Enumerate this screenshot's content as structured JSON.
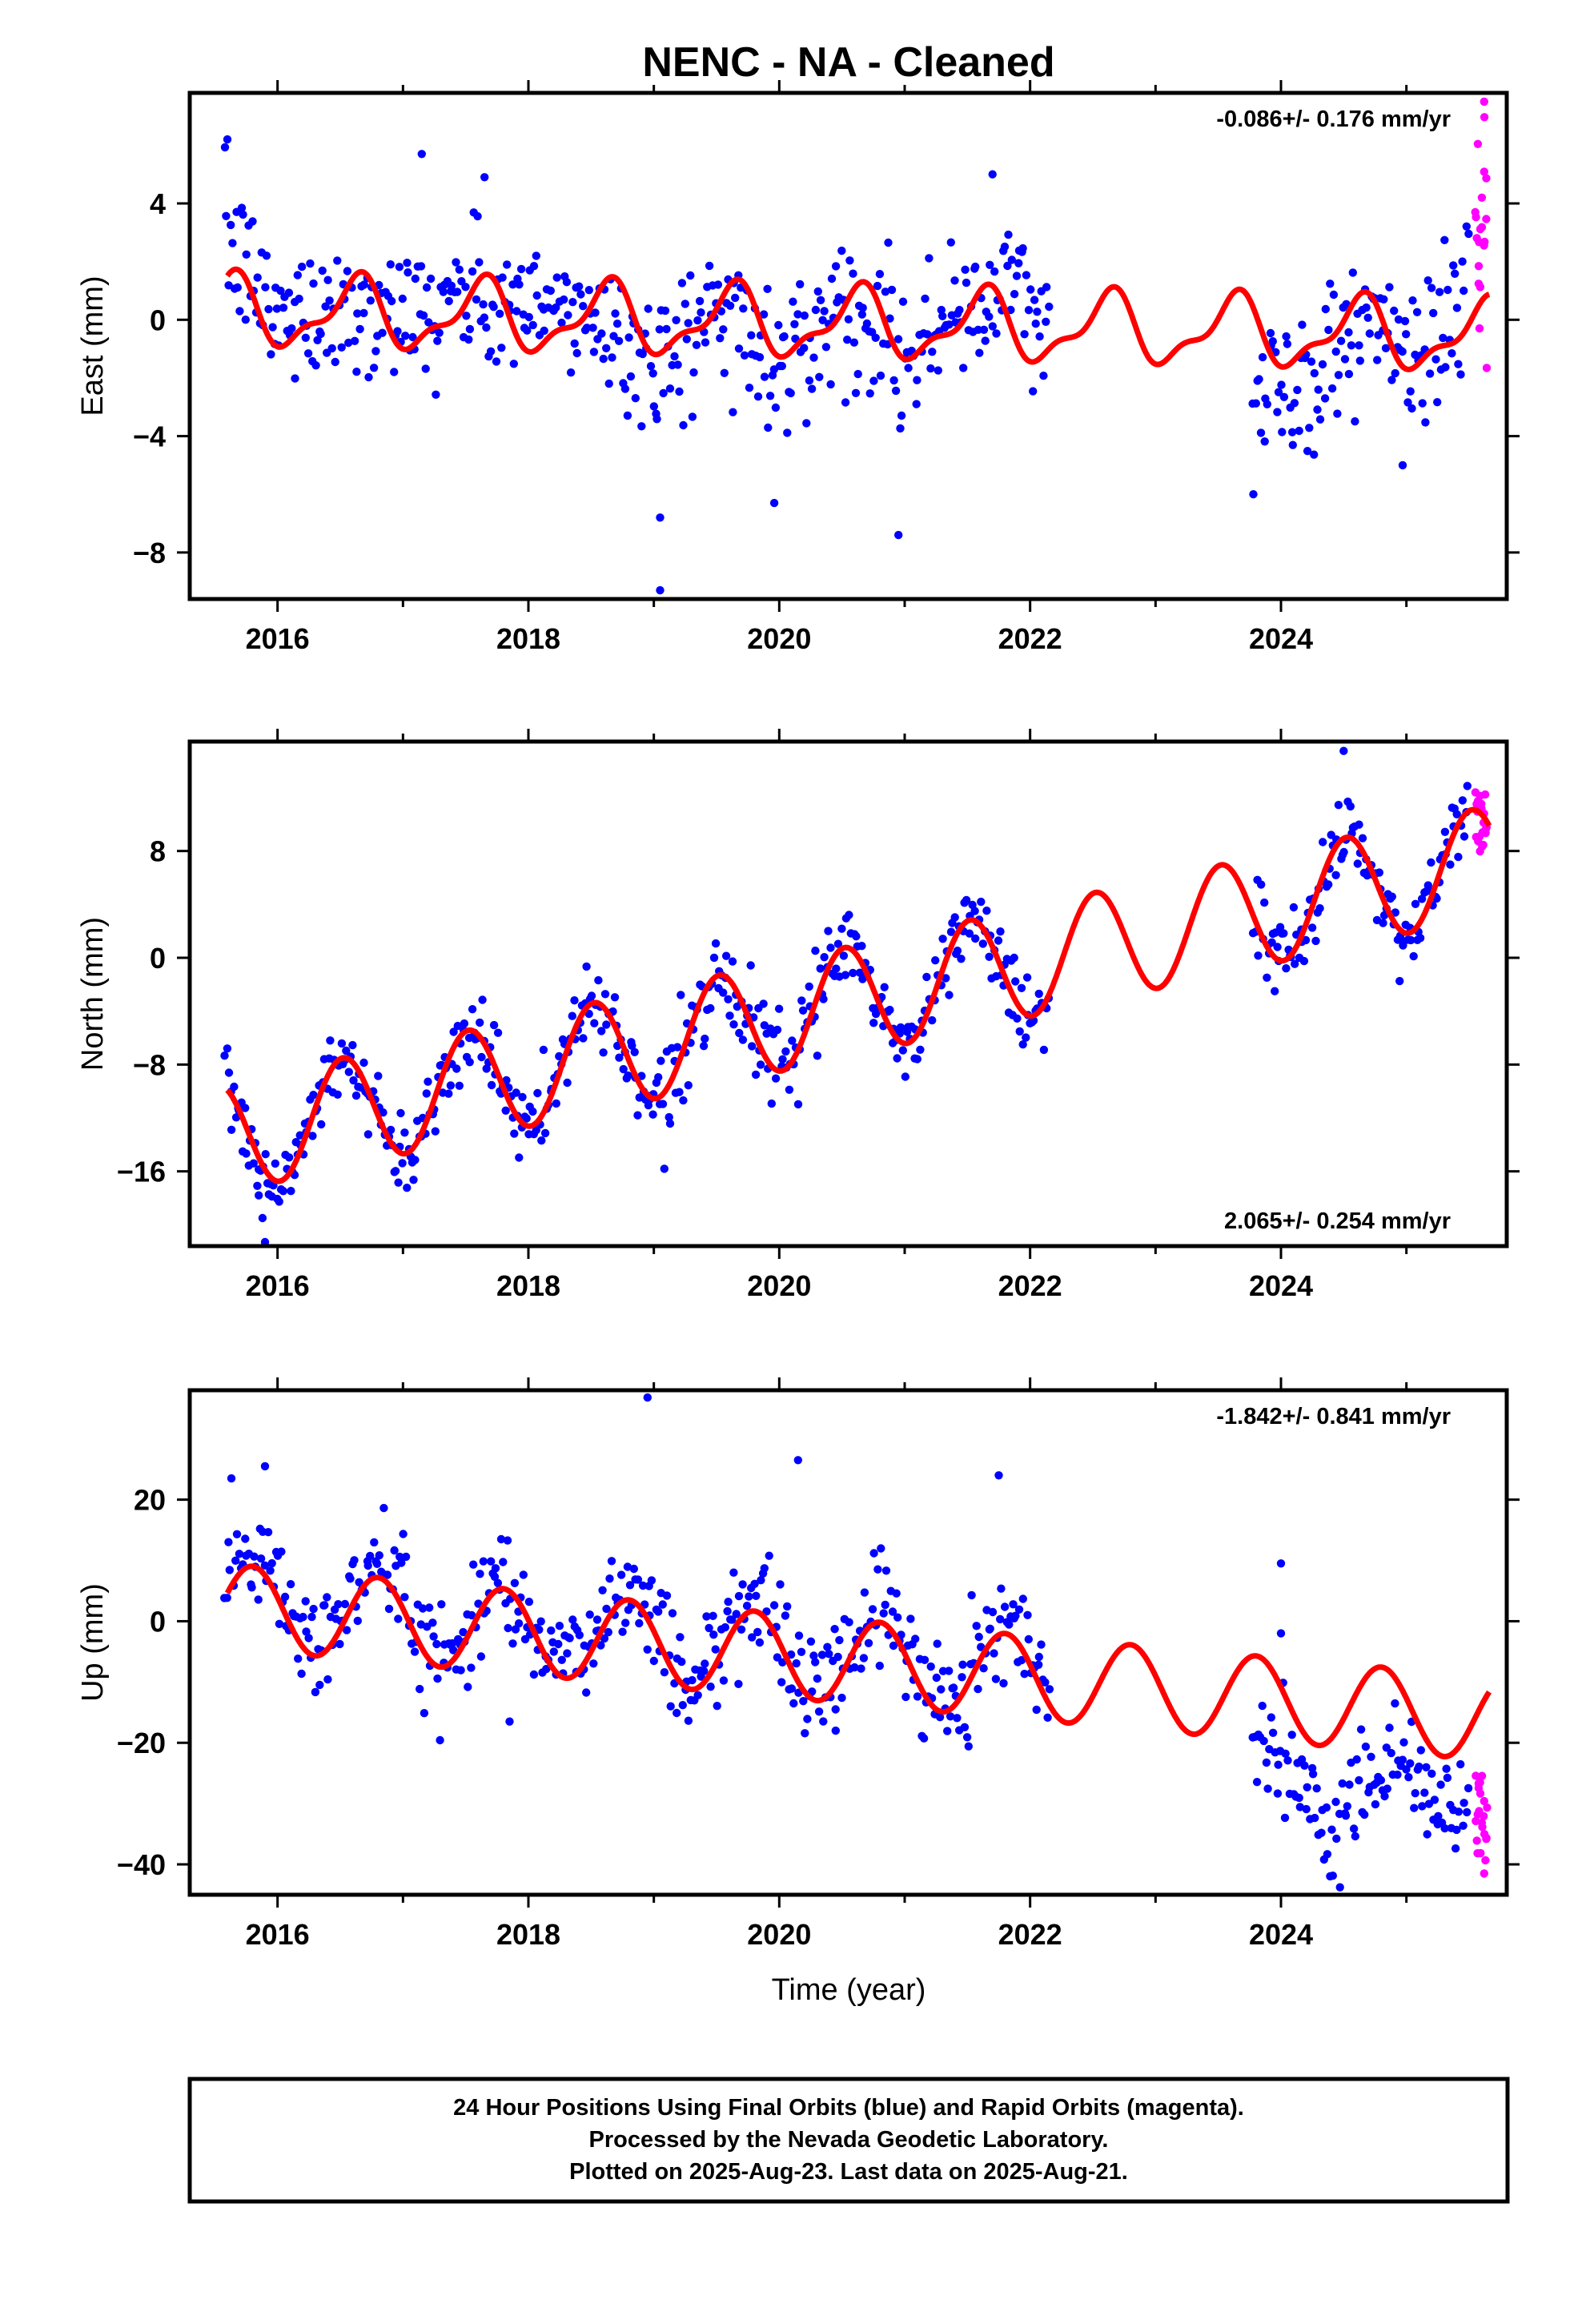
{
  "title": "NENC  - NA - Cleaned",
  "x_axis_label": "Time (year)",
  "footer": [
    "24 Hour Positions Using Final Orbits (blue) and Rapid Orbits (magenta).",
    "Processed by the Nevada Geodetic Laboratory.",
    "Plotted on 2025-Aug-23. Last data on 2025-Aug-21."
  ],
  "colors": {
    "final_orbits": "#0000ff",
    "rapid_orbits": "#ff00ff",
    "model": "#ff0000",
    "frame": "#000000"
  },
  "chart_data": [
    {
      "type": "scatter",
      "ylabel": "East (mm)",
      "rate_text": "-0.086+/- 0.176 mm/yr",
      "rate_position": "top-right",
      "xlim": [
        2015.3,
        2025.8
      ],
      "ylim": [
        -9.6,
        7.8
      ],
      "x_ticks": [
        2016,
        2018,
        2020,
        2022,
        2024
      ],
      "y_ticks": [
        4,
        0,
        -4,
        -8
      ],
      "series": [
        {
          "name": "Final Orbits",
          "color": "#0000ff",
          "segments": [
            {
              "x_start": 2015.58,
              "x_end": 2022.15,
              "center_by_year": [
                [
                  2015.6,
                  2.6
                ],
                [
                  2016.0,
                  0.0
                ],
                [
                  2016.5,
                  0.6
                ],
                [
                  2017.0,
                  0.2
                ],
                [
                  2017.5,
                  0.8
                ],
                [
                  2018.0,
                  0.2
                ],
                [
                  2018.5,
                  0.3
                ],
                [
                  2019.0,
                  -1.6
                ],
                [
                  2019.5,
                  0.4
                ],
                [
                  2020.0,
                  -1.5
                ],
                [
                  2020.5,
                  0.6
                ],
                [
                  2021.0,
                  -0.9
                ],
                [
                  2021.5,
                  0.1
                ],
                [
                  2021.8,
                  1.5
                ],
                [
                  2022.15,
                  -0.8
                ]
              ],
              "spread": 1.2
            },
            {
              "x_start": 2023.78,
              "x_end": 2025.5,
              "center_by_year": [
                [
                  2023.8,
                  -2.0
                ],
                [
                  2024.2,
                  -2.5
                ],
                [
                  2024.6,
                  0.3
                ],
                [
                  2025.0,
                  -1.2
                ],
                [
                  2025.3,
                  -0.8
                ],
                [
                  2025.5,
                  2.0
                ]
              ],
              "spread": 1.3
            }
          ]
        },
        {
          "name": "Rapid Orbits",
          "color": "#ff00ff",
          "segments": [
            {
              "x_start": 2025.55,
              "x_end": 2025.64,
              "center_by_year": [
                [
                  2025.55,
                  3.5
                ],
                [
                  2025.64,
                  2.5
                ]
              ],
              "spread": 2.0
            }
          ]
        }
      ],
      "model": {
        "color": "#ff0000",
        "offset": -0.1,
        "trend_mm_per_yr": -0.086,
        "annual_amplitude": 1.1,
        "annual_phase_year": 2016.62,
        "semiannual_amplitude": 0.45,
        "semiannual_phase_year": 2016.7
      },
      "outliers": [
        [
          2015.6,
          6.2
        ],
        [
          2017.15,
          5.7
        ],
        [
          2017.65,
          4.9
        ],
        [
          2019.05,
          -6.8
        ],
        [
          2019.05,
          -9.3
        ],
        [
          2019.96,
          -6.3
        ],
        [
          2020.95,
          -7.4
        ],
        [
          2021.7,
          5.0
        ],
        [
          2023.78,
          -6.0
        ],
        [
          2024.97,
          -5.0
        ],
        [
          2025.62,
          7.5
        ]
      ]
    },
    {
      "type": "scatter",
      "ylabel": "North (mm)",
      "rate_text": "2.065+/- 0.254 mm/yr",
      "rate_position": "bottom-right",
      "xlim": [
        2015.3,
        2025.8
      ],
      "ylim": [
        -21.6,
        16.2
      ],
      "x_ticks": [
        2016,
        2018,
        2020,
        2022,
        2024
      ],
      "y_ticks": [
        8,
        0,
        -8,
        -16
      ],
      "series": [
        {
          "name": "Final Orbits",
          "color": "#0000ff",
          "segments": [
            {
              "x_start": 2015.58,
              "x_end": 2022.15,
              "follow_model": true,
              "spread": 1.5
            },
            {
              "x_start": 2023.78,
              "x_end": 2025.5,
              "follow_model": true,
              "spread": 1.5
            }
          ]
        },
        {
          "name": "Rapid Orbits",
          "color": "#ff00ff",
          "segments": [
            {
              "x_start": 2025.55,
              "x_end": 2025.64,
              "center_by_year": [
                [
                  2025.55,
                  11.0
                ],
                [
                  2025.64,
                  9.5
                ]
              ],
              "spread": 1.6
            }
          ]
        }
      ],
      "model": {
        "color": "#ff0000",
        "offset": -13.5,
        "trend_mm_per_yr": 2.065,
        "trend_origin": 2015.6,
        "annual_amplitude": 4.1,
        "annual_phase_year": 2016.52
      },
      "outliers": [
        [
          2015.85,
          -17.8
        ],
        [
          2015.88,
          -19.5
        ],
        [
          2015.9,
          -21.3
        ],
        [
          2023.95,
          -2.5
        ],
        [
          2024.5,
          15.5
        ]
      ]
    },
    {
      "type": "scatter",
      "ylabel": "Up (mm)",
      "rate_text": "-1.842+/- 0.841 mm/yr",
      "rate_position": "top-right",
      "xlim": [
        2015.3,
        2025.8
      ],
      "ylim": [
        -45,
        38
      ],
      "x_ticks": [
        2016,
        2018,
        2020,
        2022,
        2024
      ],
      "y_ticks": [
        20,
        0,
        -20,
        -40
      ],
      "series": [
        {
          "name": "Final Orbits",
          "color": "#0000ff",
          "segments": [
            {
              "x_start": 2015.58,
              "x_end": 2022.15,
              "follow_model": true,
              "model_shift": 2.0,
              "spread": 4.5
            },
            {
              "x_start": 2023.78,
              "x_end": 2025.5,
              "center_by_year": [
                [
                  2023.8,
                  -18.0
                ],
                [
                  2024.1,
                  -25.0
                ],
                [
                  2024.4,
                  -33.0
                ],
                [
                  2024.8,
                  -22.0
                ],
                [
                  2025.1,
                  -27.0
                ],
                [
                  2025.5,
                  -33.0
                ]
              ],
              "spread": 4.0
            }
          ]
        },
        {
          "name": "Rapid Orbits",
          "color": "#ff00ff",
          "segments": [
            {
              "x_start": 2025.55,
              "x_end": 2025.64,
              "center_by_year": [
                [
                  2025.55,
                  -31.0
                ],
                [
                  2025.64,
                  -35.0
                ]
              ],
              "spread": 4.5
            }
          ]
        }
      ],
      "model": {
        "color": "#ff0000",
        "offset": 2.5,
        "trend_mm_per_yr": -1.842,
        "trend_origin": 2015.6,
        "annual_amplitude": 6.9,
        "annual_phase_year": 2015.8
      },
      "outliers": [
        [
          2015.9,
          25.5
        ],
        [
          2018.95,
          36.8
        ],
        [
          2020.15,
          26.5
        ],
        [
          2021.75,
          24.0
        ],
        [
          2024.0,
          9.5
        ],
        [
          2024.0,
          -2.0
        ],
        [
          2017.85,
          -16.5
        ],
        [
          2020.45,
          -18.0
        ],
        [
          2025.62,
          -41.5
        ]
      ]
    }
  ]
}
